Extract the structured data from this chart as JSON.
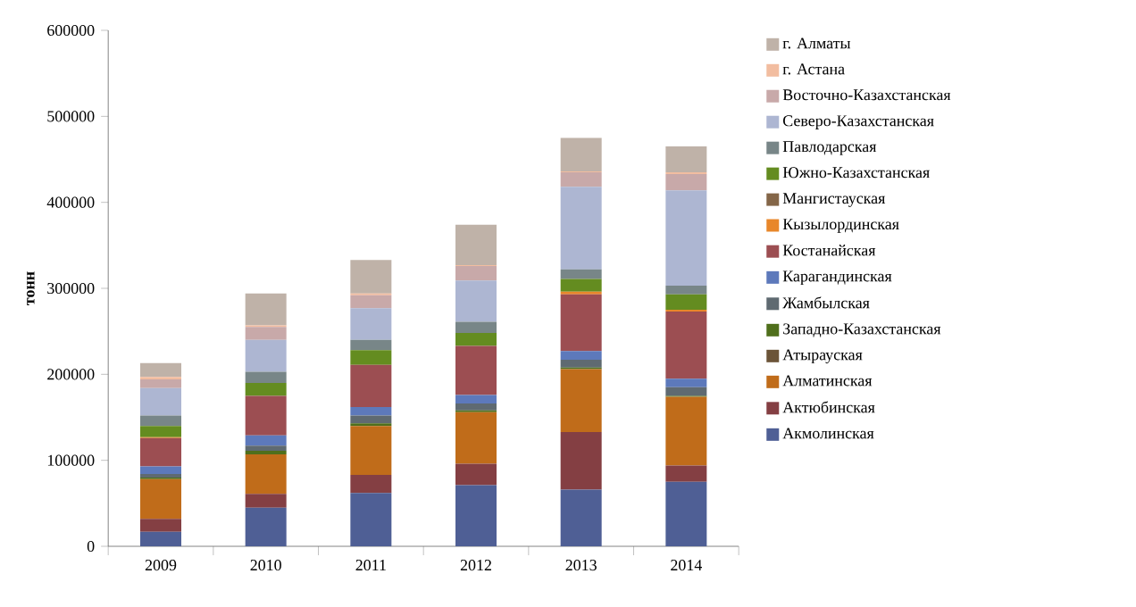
{
  "chart_data": {
    "type": "bar",
    "stacked": true,
    "ylabel": "тонн",
    "categories": [
      "2009",
      "2010",
      "2011",
      "2012",
      "2013",
      "2014"
    ],
    "ylim": [
      0,
      600000
    ],
    "yticks": [
      0,
      100000,
      200000,
      300000,
      400000,
      500000,
      600000
    ],
    "grid": false,
    "legend": "right",
    "series": [
      {
        "name": "Акмолинская",
        "color": "#4f5f95",
        "values": [
          17000,
          45000,
          62000,
          71000,
          66000,
          75000
        ]
      },
      {
        "name": "Актюбинская",
        "color": "#843f43",
        "values": [
          15000,
          16000,
          21000,
          25000,
          67000,
          19000
        ]
      },
      {
        "name": "Алматинская",
        "color": "#c06c1a",
        "values": [
          46000,
          46000,
          57000,
          60000,
          73000,
          80000
        ]
      },
      {
        "name": "Атырауская",
        "color": "#6b5438",
        "values": [
          null,
          null,
          null,
          null,
          null,
          null
        ]
      },
      {
        "name": "Западно-Казахстанская",
        "color": "#4f6f1c",
        "values": [
          2000,
          4000,
          3000,
          2000,
          2000,
          1000
        ]
      },
      {
        "name": "Жамбылская",
        "color": "#5f6a71",
        "values": [
          4000,
          6000,
          9000,
          8000,
          9000,
          10000
        ]
      },
      {
        "name": "Карагандинская",
        "color": "#5d79bb",
        "values": [
          9000,
          12000,
          10000,
          10000,
          10000,
          10000
        ]
      },
      {
        "name": "Костанайская",
        "color": "#9c4e52",
        "values": [
          33000,
          46000,
          49000,
          57000,
          66000,
          78000
        ]
      },
      {
        "name": "Кызылординская",
        "color": "#e8872a",
        "values": [
          1000,
          null,
          null,
          null,
          3000,
          2000
        ]
      },
      {
        "name": "Мангистауская",
        "color": "#846648",
        "values": [
          null,
          null,
          null,
          null,
          null,
          null
        ]
      },
      {
        "name": "Южно-Казахстанская",
        "color": "#648c20",
        "values": [
          13000,
          15000,
          17000,
          15000,
          15000,
          18000
        ]
      },
      {
        "name": "Павлодарская",
        "color": "#788688",
        "values": [
          12000,
          13000,
          12000,
          13000,
          11000,
          10000
        ]
      },
      {
        "name": "Северо-Казахстанская",
        "color": "#adb6d2",
        "values": [
          32000,
          37000,
          37000,
          48000,
          96000,
          111000
        ]
      },
      {
        "name": "Восточно-Казахстанская",
        "color": "#c8a9a9",
        "values": [
          10000,
          15000,
          15000,
          17000,
          17000,
          19000
        ]
      },
      {
        "name": "г. Астана",
        "color": "#f2bda0",
        "values": [
          3000,
          2000,
          2000,
          1000,
          1000,
          2000
        ]
      },
      {
        "name": "г. Алматы",
        "color": "#bfb2a8",
        "values": [
          16000,
          37000,
          39000,
          47000,
          39000,
          30000
        ]
      }
    ]
  }
}
